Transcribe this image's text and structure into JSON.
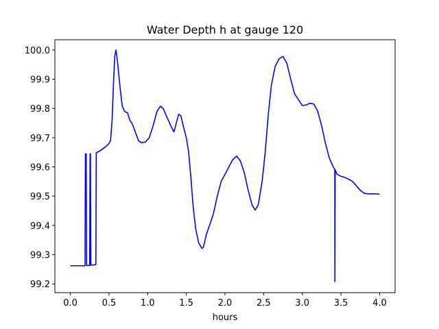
{
  "chart_data": {
    "type": "line",
    "title": "Water Depth h at gauge 120",
    "xlabel": "hours",
    "ylabel": "",
    "xlim": [
      -0.2,
      4.2
    ],
    "ylim": [
      99.17,
      100.035
    ],
    "x_ticks": [
      0.0,
      0.5,
      1.0,
      1.5,
      2.0,
      2.5,
      3.0,
      3.5,
      4.0
    ],
    "x_tick_labels": [
      "0.0",
      "0.5",
      "1.0",
      "1.5",
      "2.0",
      "2.5",
      "3.0",
      "3.5",
      "4.0"
    ],
    "y_ticks": [
      99.2,
      99.3,
      99.4,
      99.5,
      99.6,
      99.7,
      99.8,
      99.9,
      100.0
    ],
    "y_tick_labels": [
      "99.2",
      "99.3",
      "99.4",
      "99.5",
      "99.6",
      "99.7",
      "99.8",
      "99.9",
      "100.0"
    ],
    "grid": false,
    "legend": "none",
    "series": [
      {
        "color": "#0000ff",
        "points": [
          [
            0.0,
            99.262
          ],
          [
            0.19,
            99.262
          ],
          [
            0.195,
            99.645
          ],
          [
            0.205,
            99.645
          ],
          [
            0.21,
            99.263
          ],
          [
            0.25,
            99.263
          ],
          [
            0.255,
            99.645
          ],
          [
            0.26,
            99.645
          ],
          [
            0.265,
            99.264
          ],
          [
            0.33,
            99.266
          ],
          [
            0.335,
            99.648
          ],
          [
            0.36,
            99.652
          ],
          [
            0.4,
            99.658
          ],
          [
            0.45,
            99.668
          ],
          [
            0.5,
            99.68
          ],
          [
            0.52,
            99.69
          ],
          [
            0.54,
            99.76
          ],
          [
            0.56,
            99.9
          ],
          [
            0.575,
            99.98
          ],
          [
            0.59,
            100.0
          ],
          [
            0.61,
            99.96
          ],
          [
            0.64,
            99.88
          ],
          [
            0.67,
            99.81
          ],
          [
            0.7,
            99.79
          ],
          [
            0.74,
            99.785
          ],
          [
            0.77,
            99.76
          ],
          [
            0.8,
            99.748
          ],
          [
            0.84,
            99.72
          ],
          [
            0.88,
            99.69
          ],
          [
            0.92,
            99.683
          ],
          [
            0.97,
            99.685
          ],
          [
            1.02,
            99.7
          ],
          [
            1.07,
            99.74
          ],
          [
            1.12,
            99.79
          ],
          [
            1.165,
            99.808
          ],
          [
            1.2,
            99.8
          ],
          [
            1.25,
            99.77
          ],
          [
            1.3,
            99.74
          ],
          [
            1.34,
            99.72
          ],
          [
            1.37,
            99.75
          ],
          [
            1.4,
            99.78
          ],
          [
            1.43,
            99.775
          ],
          [
            1.46,
            99.74
          ],
          [
            1.5,
            99.7
          ],
          [
            1.53,
            99.65
          ],
          [
            1.56,
            99.56
          ],
          [
            1.59,
            99.46
          ],
          [
            1.62,
            99.39
          ],
          [
            1.66,
            99.34
          ],
          [
            1.7,
            99.322
          ],
          [
            1.72,
            99.325
          ],
          [
            1.76,
            99.37
          ],
          [
            1.8,
            99.4
          ],
          [
            1.85,
            99.44
          ],
          [
            1.9,
            99.5
          ],
          [
            1.95,
            99.55
          ],
          [
            2.0,
            99.575
          ],
          [
            2.05,
            99.6
          ],
          [
            2.1,
            99.625
          ],
          [
            2.15,
            99.637
          ],
          [
            2.2,
            99.62
          ],
          [
            2.25,
            99.58
          ],
          [
            2.3,
            99.52
          ],
          [
            2.35,
            99.47
          ],
          [
            2.39,
            99.453
          ],
          [
            2.43,
            99.47
          ],
          [
            2.48,
            99.55
          ],
          [
            2.52,
            99.65
          ],
          [
            2.56,
            99.78
          ],
          [
            2.6,
            99.88
          ],
          [
            2.65,
            99.945
          ],
          [
            2.7,
            99.97
          ],
          [
            2.75,
            99.978
          ],
          [
            2.8,
            99.955
          ],
          [
            2.85,
            99.9
          ],
          [
            2.9,
            99.85
          ],
          [
            2.95,
            99.83
          ],
          [
            3.0,
            99.81
          ],
          [
            3.05,
            99.812
          ],
          [
            3.1,
            99.818
          ],
          [
            3.15,
            99.815
          ],
          [
            3.2,
            99.79
          ],
          [
            3.25,
            99.74
          ],
          [
            3.3,
            99.68
          ],
          [
            3.35,
            99.63
          ],
          [
            3.4,
            99.6
          ],
          [
            3.42,
            99.592
          ],
          [
            3.421,
            99.208
          ],
          [
            3.425,
            99.59
          ],
          [
            3.45,
            99.575
          ],
          [
            3.5,
            99.568
          ],
          [
            3.55,
            99.564
          ],
          [
            3.6,
            99.558
          ],
          [
            3.65,
            99.55
          ],
          [
            3.7,
            99.535
          ],
          [
            3.75,
            99.52
          ],
          [
            3.8,
            99.51
          ],
          [
            3.85,
            99.508
          ],
          [
            3.9,
            99.508
          ],
          [
            3.95,
            99.508
          ],
          [
            4.0,
            99.507
          ]
        ]
      }
    ]
  }
}
